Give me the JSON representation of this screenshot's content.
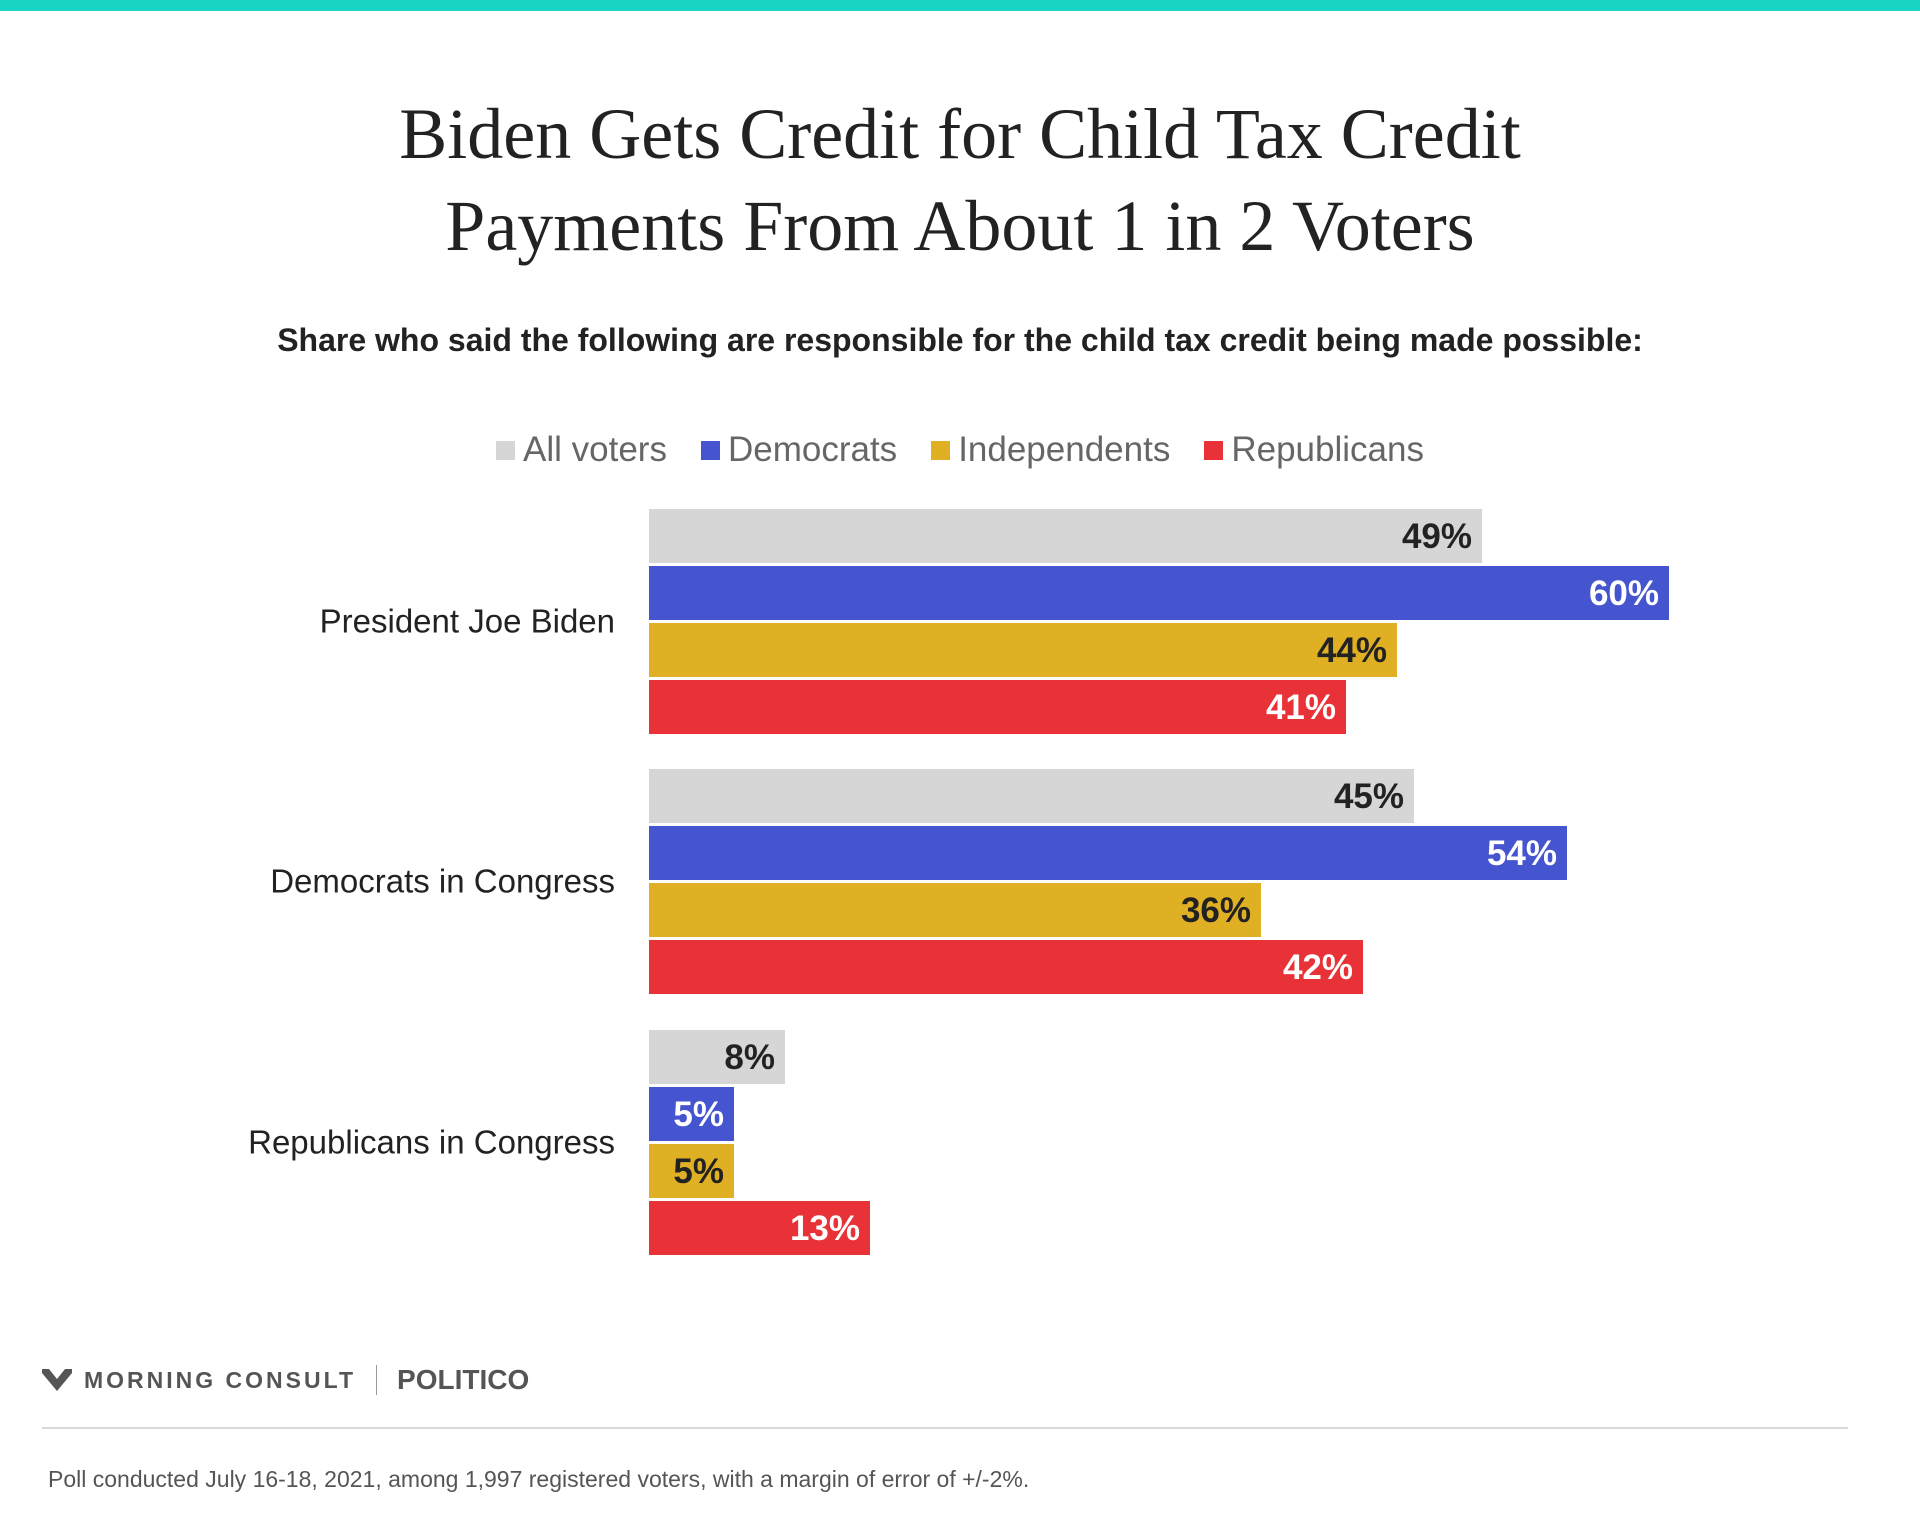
{
  "title_lines": [
    "Biden Gets Credit for Child Tax Credit",
    "Payments From About 1 in 2 Voters"
  ],
  "subtitle": "Share who said the following are responsible for the child tax credit being made possible:",
  "legend": [
    {
      "label": "All voters",
      "color": "#d6d6d6"
    },
    {
      "label": "Democrats",
      "color": "#4554cf"
    },
    {
      "label": "Independents",
      "color": "#e0b024"
    },
    {
      "label": "Republicans",
      "color": "#e93237"
    }
  ],
  "chart_data": {
    "type": "bar",
    "orientation": "horizontal",
    "title": "Biden Gets Credit for Child Tax Credit Payments From About 1 in 2 Voters",
    "subtitle": "Share who said the following are responsible for the child tax credit being made possible:",
    "categories": [
      "President Joe Biden",
      "Democrats in Congress",
      "Republicans in Congress"
    ],
    "series": [
      {
        "name": "All voters",
        "values": [
          49,
          45,
          8
        ],
        "color": "#d6d6d6",
        "label_color": "#222222"
      },
      {
        "name": "Democrats",
        "values": [
          60,
          54,
          5
        ],
        "color": "#4554cf",
        "label_color": "#ffffff"
      },
      {
        "name": "Independents",
        "values": [
          44,
          36,
          5
        ],
        "color": "#e0b024",
        "label_color": "#222222"
      },
      {
        "name": "Republicans",
        "values": [
          41,
          42,
          13
        ],
        "color": "#e93237",
        "label_color": "#ffffff"
      }
    ],
    "value_suffix": "%",
    "xlim": [
      0,
      100
    ],
    "grid": false,
    "legend_position": "top"
  },
  "branding": {
    "logo_text": "MORNING CONSULT",
    "partner": "POLITICO"
  },
  "footnote": "Poll conducted July 16-18, 2021, among 1,997 registered voters, with a margin of error of +/-2%."
}
